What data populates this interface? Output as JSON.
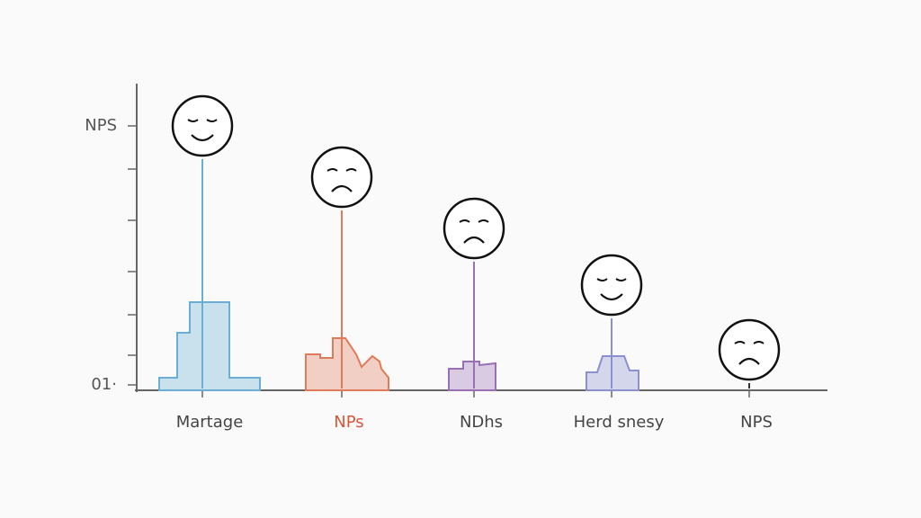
{
  "chart_data": {
    "type": "lollipop",
    "categories": [
      "Martage",
      "NPs",
      "NDhs",
      "Herd snesy",
      "NPS"
    ],
    "values": [
      98,
      79,
      60,
      39,
      15
    ],
    "series_colors": [
      "#6aaed6",
      "#e07b5a",
      "#9a6fb5",
      "#8a90d0",
      "#333333"
    ],
    "label_colors": [
      "#444444",
      "#d9573b",
      "#444444",
      "#444444",
      "#444444"
    ],
    "markers": [
      "happy",
      "sad",
      "sad",
      "happy",
      "sad"
    ],
    "ylim": [
      0,
      100
    ],
    "yticks": [
      {
        "value": 2,
        "label": "01·"
      },
      {
        "value": 13,
        "label": null
      },
      {
        "value": 28,
        "label": null
      },
      {
        "value": 44,
        "label": null
      },
      {
        "value": 63,
        "label": null
      },
      {
        "value": 82,
        "label": null
      },
      {
        "value": 98,
        "label": "NPS"
      }
    ]
  }
}
